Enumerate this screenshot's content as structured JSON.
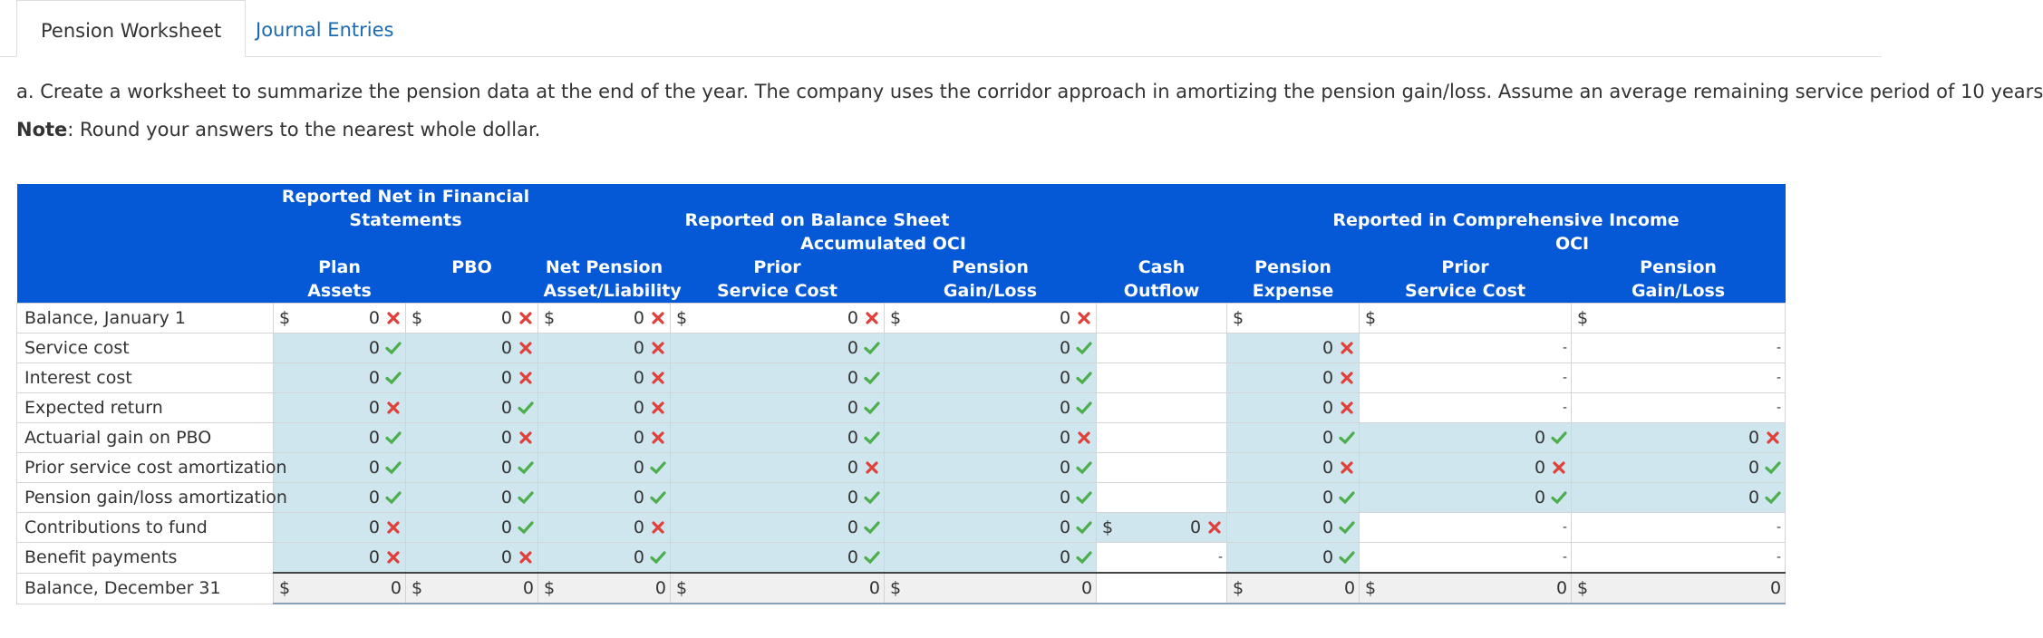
{
  "tabs": [
    "Pension Worksheet",
    "Journal Entries"
  ],
  "active_tab": 0,
  "instructions": {
    "part_a": "a. Create a worksheet to summarize the pension data at the end of the year. The company uses the corridor approach in amortizing the pension gain/loss. Assume an average remaining service period of 10 years",
    "note_label": "Note",
    "note_text": ": Round your answers to the nearest whole dollar."
  },
  "table": {
    "header": {
      "groups": [
        "Reported Net in Financial Statements",
        "Reported on Balance Sheet",
        "Reported in Comprehensive Income"
      ],
      "subgroups": [
        "Accumulated OCI",
        "OCI"
      ],
      "columns": [
        [
          "Plan",
          "Assets"
        ],
        [
          "PBO"
        ],
        [
          "Net Pension",
          "Asset/Liability"
        ],
        [
          "Prior",
          "Service Cost"
        ],
        [
          "Pension",
          "Gain/Loss"
        ],
        [
          "Cash",
          "Outflow"
        ],
        [
          "Pension",
          "Expense"
        ],
        [
          "Prior",
          "Service Cost"
        ],
        [
          "Pension",
          "Gain/Loss"
        ]
      ]
    },
    "rows": [
      {
        "label": "Balance, January 1",
        "cells": [
          {
            "prefix": "$",
            "value": 0,
            "status": "incorrect"
          },
          {
            "prefix": "$",
            "value": 0,
            "status": "incorrect"
          },
          {
            "prefix": "$",
            "value": 0,
            "status": "incorrect"
          },
          {
            "prefix": "$",
            "value": 0,
            "status": "incorrect"
          },
          {
            "prefix": "$",
            "value": 0,
            "status": "incorrect"
          },
          null,
          {
            "prefix": "$"
          },
          {
            "prefix": "$"
          },
          {
            "prefix": "$"
          }
        ]
      },
      {
        "label": "Service cost",
        "cells": [
          {
            "value": 0,
            "status": "correct"
          },
          {
            "value": 0,
            "status": "incorrect"
          },
          {
            "value": 0,
            "status": "incorrect"
          },
          {
            "value": 0,
            "status": "correct"
          },
          {
            "value": 0,
            "status": "correct"
          },
          null,
          {
            "value": 0,
            "status": "incorrect"
          },
          {
            "value": "-"
          },
          {
            "value": "-"
          }
        ]
      },
      {
        "label": "Interest cost",
        "cells": [
          {
            "value": 0,
            "status": "correct"
          },
          {
            "value": 0,
            "status": "incorrect"
          },
          {
            "value": 0,
            "status": "incorrect"
          },
          {
            "value": 0,
            "status": "correct"
          },
          {
            "value": 0,
            "status": "correct"
          },
          null,
          {
            "value": 0,
            "status": "incorrect"
          },
          {
            "value": "-"
          },
          {
            "value": "-"
          }
        ]
      },
      {
        "label": "Expected return",
        "cells": [
          {
            "value": 0,
            "status": "incorrect"
          },
          {
            "value": 0,
            "status": "correct"
          },
          {
            "value": 0,
            "status": "incorrect"
          },
          {
            "value": 0,
            "status": "correct"
          },
          {
            "value": 0,
            "status": "correct"
          },
          null,
          {
            "value": 0,
            "status": "incorrect"
          },
          {
            "value": "-"
          },
          {
            "value": "-"
          }
        ]
      },
      {
        "label": "Actuarial gain on PBO",
        "cells": [
          {
            "value": 0,
            "status": "correct"
          },
          {
            "value": 0,
            "status": "incorrect"
          },
          {
            "value": 0,
            "status": "incorrect"
          },
          {
            "value": 0,
            "status": "correct"
          },
          {
            "value": 0,
            "status": "incorrect"
          },
          null,
          {
            "value": 0,
            "status": "correct"
          },
          {
            "value": 0,
            "status": "correct"
          },
          {
            "value": 0,
            "status": "incorrect"
          }
        ]
      },
      {
        "label": "Prior service cost amortization",
        "cells": [
          {
            "value": 0,
            "status": "correct"
          },
          {
            "value": 0,
            "status": "correct"
          },
          {
            "value": 0,
            "status": "correct"
          },
          {
            "value": 0,
            "status": "incorrect"
          },
          {
            "value": 0,
            "status": "correct"
          },
          null,
          {
            "value": 0,
            "status": "incorrect"
          },
          {
            "value": 0,
            "status": "incorrect"
          },
          {
            "value": 0,
            "status": "correct"
          }
        ]
      },
      {
        "label": "Pension gain/loss amortization",
        "cells": [
          {
            "value": 0,
            "status": "correct"
          },
          {
            "value": 0,
            "status": "correct"
          },
          {
            "value": 0,
            "status": "correct"
          },
          {
            "value": 0,
            "status": "correct"
          },
          {
            "value": 0,
            "status": "correct"
          },
          null,
          {
            "value": 0,
            "status": "correct"
          },
          {
            "value": 0,
            "status": "correct"
          },
          {
            "value": 0,
            "status": "correct"
          }
        ]
      },
      {
        "label": "Contributions to fund",
        "cells": [
          {
            "value": 0,
            "status": "incorrect"
          },
          {
            "value": 0,
            "status": "correct"
          },
          {
            "value": 0,
            "status": "incorrect"
          },
          {
            "value": 0,
            "status": "correct"
          },
          {
            "value": 0,
            "status": "correct"
          },
          {
            "prefix": "$",
            "value": 0,
            "status": "incorrect"
          },
          {
            "value": 0,
            "status": "correct"
          },
          {
            "value": "-"
          },
          {
            "value": "-"
          }
        ]
      },
      {
        "label": "Benefit payments",
        "cells": [
          {
            "value": 0,
            "status": "incorrect"
          },
          {
            "value": 0,
            "status": "incorrect"
          },
          {
            "value": 0,
            "status": "correct"
          },
          {
            "value": 0,
            "status": "correct"
          },
          {
            "value": 0,
            "status": "correct"
          },
          {
            "value": "-"
          },
          {
            "value": 0,
            "status": "correct"
          },
          {
            "value": "-"
          },
          {
            "value": "-"
          }
        ]
      },
      {
        "label": "Balance, December 31",
        "cells": [
          {
            "prefix": "$",
            "value": 0
          },
          {
            "prefix": "$",
            "value": 0
          },
          {
            "prefix": "$",
            "value": 0
          },
          {
            "prefix": "$",
            "value": 0
          },
          {
            "prefix": "$",
            "value": 0
          },
          null,
          {
            "prefix": "$",
            "value": 0
          },
          {
            "prefix": "$",
            "value": 0
          },
          {
            "prefix": "$",
            "value": 0
          }
        ]
      }
    ]
  }
}
